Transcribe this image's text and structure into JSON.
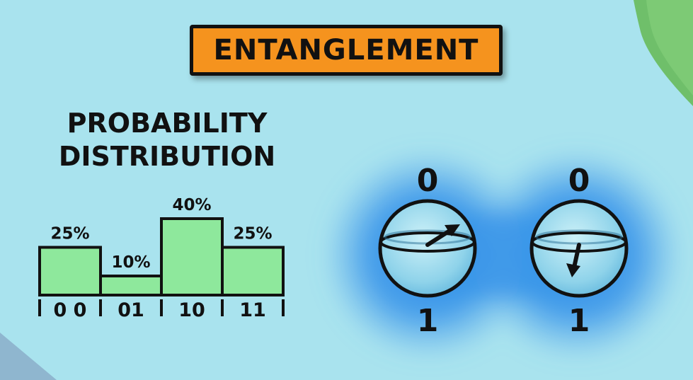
{
  "title": "ENTANGLEMENT",
  "heading": {
    "line1": "PROBABILITY",
    "line2": "DISTRIBUTION"
  },
  "chart_data": {
    "type": "bar",
    "title": "PROBABILITY DISTRIBUTION",
    "categories": [
      "0 0",
      "01",
      "10",
      "11"
    ],
    "values": [
      25,
      10,
      40,
      25
    ],
    "labels": [
      "25%",
      "10%",
      "40%",
      "25%"
    ],
    "unit": "%",
    "ylim": [
      0,
      40
    ]
  },
  "qubits": [
    {
      "top_label": "0",
      "bottom_label": "1",
      "arrow": "up-right"
    },
    {
      "top_label": "0",
      "bottom_label": "1",
      "arrow": "down"
    }
  ],
  "colors": {
    "background": "#a9e3ee",
    "title_badge": "#f5931e",
    "bar_fill": "#8ee89c",
    "glow": "#2f8fe6",
    "corner_blob": "#6fbf6a",
    "outline": "#111111"
  }
}
